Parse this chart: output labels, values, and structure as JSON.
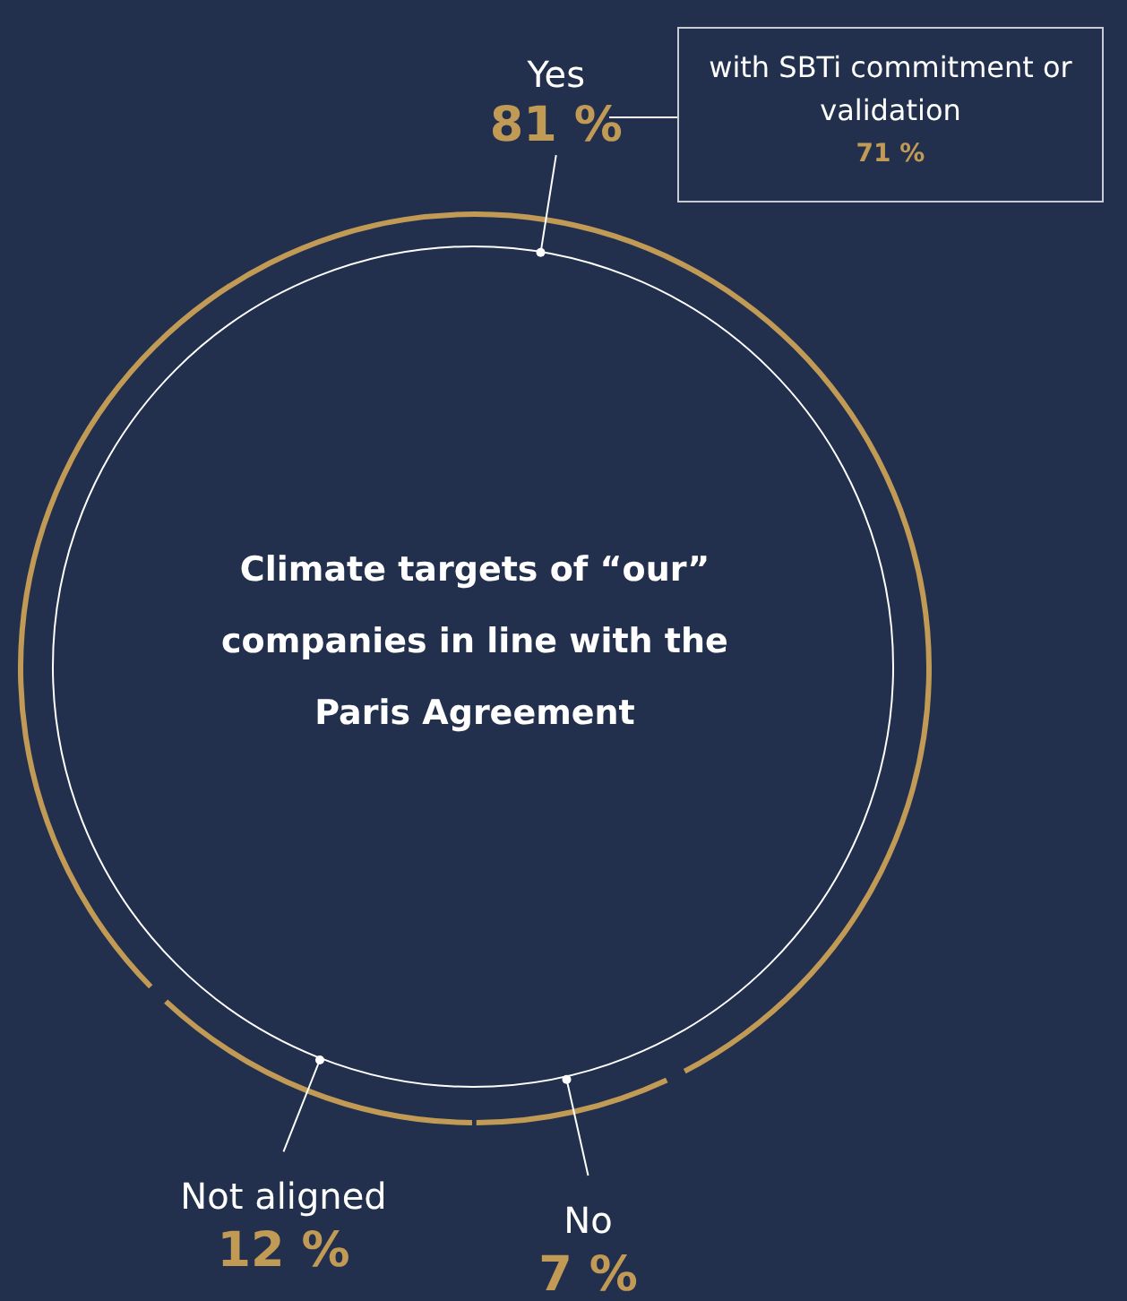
{
  "chart_data": {
    "type": "donut",
    "title": "Climate targets of “our” companies in line with the Paris Agreement",
    "categories": [
      "Yes",
      "No",
      "Not aligned"
    ],
    "values": [
      81,
      7,
      12
    ],
    "value_labels": [
      "81 %",
      "7 %",
      "12 %"
    ],
    "colors": [
      "#c19a56",
      "#c19a56",
      "#c19a56"
    ],
    "legend": false,
    "annotations": [
      "with SBTi commitment or validation",
      "71 %"
    ]
  }
}
